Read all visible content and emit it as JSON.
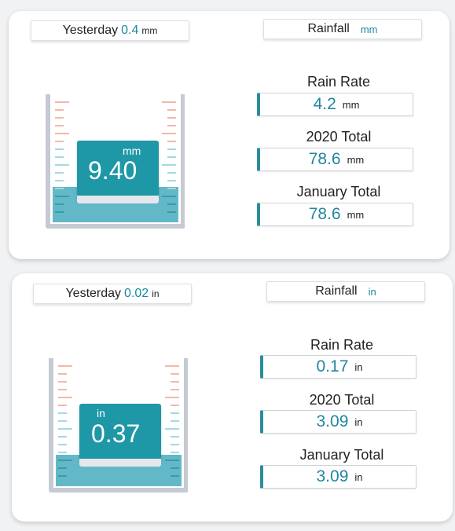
{
  "panels": [
    {
      "yesterday": {
        "label": "Yesterday",
        "value": "0.4",
        "unit": "mm"
      },
      "rainfall": {
        "label": "Rainfall",
        "unit": "mm"
      },
      "gauge": {
        "value": "9.40",
        "unit": "mm",
        "fill_fraction": 0.3
      },
      "stats": [
        {
          "label": "Rain Rate",
          "value": "4.2",
          "unit": "mm"
        },
        {
          "label": "2020 Total",
          "value": "78.6",
          "unit": "mm"
        },
        {
          "label": "January Total",
          "value": "78.6",
          "unit": "mm"
        }
      ]
    },
    {
      "yesterday": {
        "label": "Yesterday",
        "value": "0.02",
        "unit": "in"
      },
      "rainfall": {
        "label": "Rainfall",
        "unit": "in"
      },
      "gauge": {
        "value": "0.37",
        "unit": "in",
        "fill_fraction": 0.3
      },
      "stats": [
        {
          "label": "Rain Rate",
          "value": "0.17",
          "unit": "in"
        },
        {
          "label": "2020 Total",
          "value": "3.09",
          "unit": "in"
        },
        {
          "label": "January Total",
          "value": "3.09",
          "unit": "in"
        }
      ]
    }
  ],
  "colors": {
    "water": "#63b8c8",
    "accent": "#1e97a6",
    "tick_upper": "#f3b7ab",
    "tick_lower": "#a3d9df",
    "tube": "#c5cad3"
  }
}
